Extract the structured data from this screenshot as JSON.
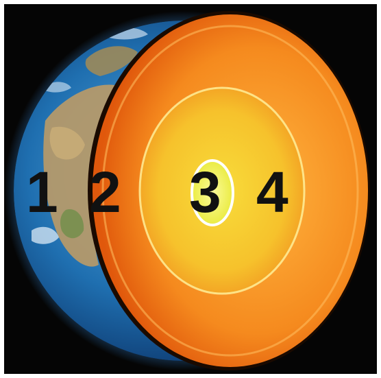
{
  "diagram": {
    "labels": [
      "1",
      "2",
      "3",
      "4"
    ],
    "colors": {
      "background": "#050505",
      "ocean": "#1f6fb0",
      "land": "#b89a68",
      "crust_edge": "#1a0a00",
      "mantle": "#f07a18",
      "outer_core": "#f5b020",
      "inner_core": "#eef040",
      "label_text": "#111111"
    }
  }
}
